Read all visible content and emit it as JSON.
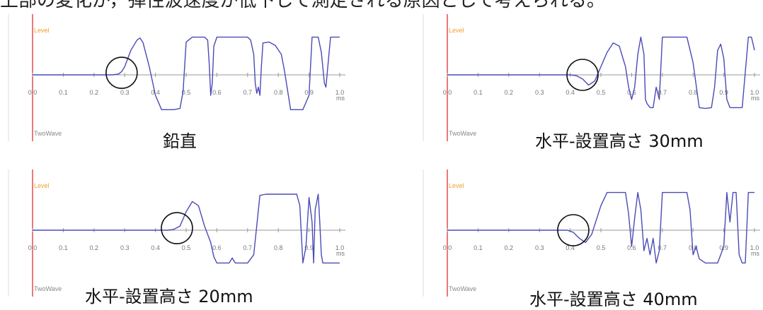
{
  "top_text": "上部の変化が，弾性波速度が低下して測定される原因として考えられる。",
  "colors": {
    "signal": "#4a4ab8",
    "axis": "#999999",
    "level_axis": "#e02020",
    "circle": "#111111"
  },
  "panels": [
    {
      "caption": "鉛直",
      "chart_data": {
        "type": "line",
        "ylabel": "Level",
        "xunit": "ms",
        "bottom_label": "TwoWave",
        "xlim": [
          0,
          1.0
        ],
        "ylim": [
          -1,
          1
        ],
        "xticks": [
          "0.0",
          "0.1",
          "0.2",
          "0.3",
          "0.4",
          "0.5",
          "0.6",
          "0.7",
          "0.8",
          "0.9",
          "1.0"
        ],
        "circle_at": [
          0.29,
          0.05
        ],
        "series": [
          {
            "x": [
              0,
              0.26,
              0.28,
              0.29,
              0.3,
              0.32,
              0.34,
              0.35,
              0.36,
              0.38,
              0.4,
              0.42,
              0.44,
              0.46,
              0.48,
              0.49,
              0.5,
              0.52,
              0.54,
              0.56,
              0.57,
              0.575,
              0.58,
              0.585,
              0.59,
              0.6,
              0.62,
              0.66,
              0.7,
              0.71,
              0.72,
              0.725,
              0.73,
              0.735,
              0.74,
              0.745,
              0.75,
              0.77,
              0.79,
              0.81,
              0.82,
              0.84,
              0.86,
              0.88,
              0.9,
              0.91,
              0.92,
              0.93,
              0.94,
              0.95,
              0.955,
              0.96,
              0.97,
              0.98,
              1.0
            ],
            "y": [
              0,
              0,
              0.02,
              0.08,
              0.2,
              0.6,
              0.85,
              0.9,
              0.78,
              0.2,
              -0.5,
              -0.85,
              -0.85,
              -0.85,
              -0.82,
              -0.4,
              0.8,
              0.92,
              0.92,
              0.92,
              0.85,
              0.3,
              -0.5,
              -0.2,
              0.7,
              0.92,
              0.92,
              0.92,
              0.92,
              0.85,
              0.5,
              -0.2,
              -0.45,
              -0.3,
              -0.5,
              0.2,
              0.78,
              0.8,
              0.72,
              0.5,
              0.1,
              -0.85,
              -0.85,
              -0.85,
              -0.5,
              0.92,
              0.92,
              0.92,
              0.55,
              -0.2,
              -0.3,
              0.1,
              0.92,
              0.92,
              0.92
            ]
          }
        ]
      }
    },
    {
      "caption": "水平-設置高さ 30mm",
      "chart_data": {
        "type": "line",
        "ylabel": "Level",
        "xunit": "ms",
        "bottom_label": "TwoWave",
        "xlim": [
          0,
          1.0
        ],
        "ylim": [
          -1,
          1
        ],
        "xticks": [
          "0.0",
          "0.1",
          "0.2",
          "0.3",
          "0.4",
          "0.5",
          "0.6",
          "0.7",
          "0.8",
          "0.9",
          "1.0"
        ],
        "circle_at": [
          0.44,
          0.0
        ],
        "series": [
          {
            "x": [
              0,
              0.4,
              0.42,
              0.44,
              0.46,
              0.48,
              0.5,
              0.52,
              0.54,
              0.56,
              0.58,
              0.59,
              0.6,
              0.61,
              0.62,
              0.63,
              0.64,
              0.645,
              0.65,
              0.66,
              0.67,
              0.68,
              0.69,
              0.7,
              0.72,
              0.74,
              0.76,
              0.78,
              0.8,
              0.82,
              0.84,
              0.86,
              0.87,
              0.88,
              0.89,
              0.9,
              0.91,
              0.92,
              0.94,
              0.96,
              0.98,
              0.99,
              1.0
            ],
            "y": [
              0,
              0,
              -0.02,
              -0.1,
              -0.25,
              -0.15,
              0.2,
              0.55,
              0.78,
              0.7,
              0.2,
              -0.3,
              -0.6,
              -0.3,
              0.5,
              0.92,
              0.5,
              -0.6,
              -0.7,
              -0.8,
              -0.8,
              -0.3,
              -0.6,
              0.92,
              0.92,
              0.92,
              0.92,
              0.92,
              0.3,
              -0.8,
              -0.82,
              -0.8,
              -0.3,
              0.6,
              0.75,
              0.4,
              -0.6,
              -0.8,
              -0.8,
              -0.8,
              0.92,
              0.92,
              0.6
            ]
          }
        ]
      }
    },
    {
      "caption": "水平-設置高さ 20mm",
      "chart_data": {
        "type": "line",
        "ylabel": "Level",
        "xunit": "ms",
        "bottom_label": "TwoWave",
        "xlim": [
          0,
          1.0
        ],
        "ylim": [
          -1,
          1
        ],
        "xticks": [
          "0.0",
          "0.1",
          "0.2",
          "0.3",
          "0.4",
          "0.5",
          "0.6",
          "0.7",
          "0.8",
          "0.9",
          "1.0"
        ],
        "circle_at": [
          0.47,
          0.05
        ],
        "series": [
          {
            "x": [
              0,
              0.44,
              0.46,
              0.48,
              0.5,
              0.52,
              0.54,
              0.56,
              0.58,
              0.59,
              0.6,
              0.62,
              0.64,
              0.65,
              0.66,
              0.68,
              0.7,
              0.72,
              0.74,
              0.76,
              0.78,
              0.8,
              0.82,
              0.84,
              0.86,
              0.87,
              0.88,
              0.89,
              0.9,
              0.91,
              0.915,
              0.92,
              0.93,
              0.935,
              0.94,
              0.945,
              0.95,
              0.96,
              0.97,
              0.98,
              1.0
            ],
            "y": [
              0,
              0,
              0.02,
              0.1,
              0.45,
              0.7,
              0.6,
              0.1,
              -0.3,
              -0.65,
              -0.8,
              -0.8,
              -0.8,
              -0.68,
              -0.8,
              -0.8,
              -0.8,
              -0.6,
              0.85,
              0.88,
              0.88,
              0.88,
              0.88,
              0.88,
              0.88,
              0.6,
              -0.8,
              -0.4,
              0.8,
              0.2,
              -0.8,
              0.5,
              0.88,
              0.2,
              -0.6,
              -0.8,
              -0.8,
              -0.8,
              -0.8,
              -0.8,
              -0.8
            ]
          }
        ]
      }
    },
    {
      "caption": "水平-設置高さ 40mm",
      "chart_data": {
        "type": "line",
        "ylabel": "Level",
        "xunit": "ms",
        "bottom_label": "TwoWave",
        "xlim": [
          0,
          1.0
        ],
        "ylim": [
          -1,
          1
        ],
        "xticks": [
          "0.0",
          "0.1",
          "0.2",
          "0.3",
          "0.4",
          "0.5",
          "0.6",
          "0.7",
          "0.8",
          "0.9",
          "1.0"
        ],
        "circle_at": [
          0.41,
          0.0
        ],
        "series": [
          {
            "x": [
              0,
              0.39,
              0.41,
              0.43,
              0.45,
              0.47,
              0.5,
              0.52,
              0.54,
              0.56,
              0.58,
              0.59,
              0.6,
              0.61,
              0.62,
              0.63,
              0.64,
              0.65,
              0.66,
              0.67,
              0.68,
              0.69,
              0.7,
              0.72,
              0.74,
              0.76,
              0.78,
              0.79,
              0.8,
              0.81,
              0.82,
              0.84,
              0.86,
              0.88,
              0.9,
              0.91,
              0.92,
              0.93,
              0.94,
              0.95,
              0.96,
              0.97,
              0.98,
              1.0
            ],
            "y": [
              0,
              0,
              -0.05,
              -0.2,
              -0.3,
              -0.1,
              0.6,
              0.92,
              0.92,
              0.92,
              0.92,
              0.4,
              -0.4,
              0.3,
              0.92,
              0.5,
              -0.5,
              -0.2,
              -0.6,
              -0.2,
              -0.8,
              -0.5,
              0.92,
              0.92,
              0.92,
              0.92,
              0.92,
              0.5,
              -0.6,
              -0.4,
              -0.7,
              -0.8,
              -0.8,
              -0.8,
              -0.4,
              0.92,
              0.2,
              0.92,
              0.92,
              -0.6,
              -0.8,
              -0.8,
              0.92,
              0.92
            ]
          }
        ]
      }
    }
  ]
}
